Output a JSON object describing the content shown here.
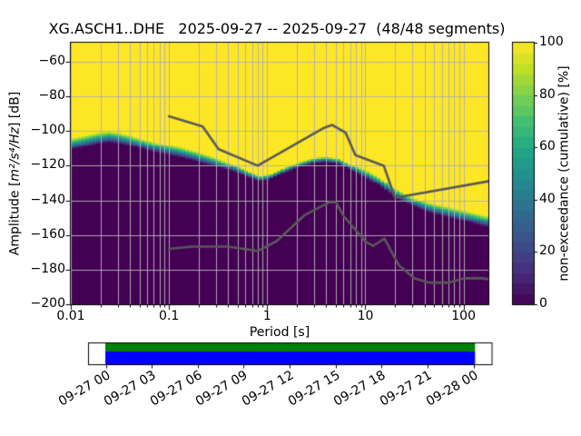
{
  "title": "XG.ASCH1..DHE   2025-09-27 -- 2025-09-27  (48/48 segments)",
  "axes": {
    "x_label": "Period [s]",
    "y_label_prefix": "Amplitude [",
    "y_label_math": "m²/s⁴/Hz",
    "y_label_suffix": "] [dB]",
    "x_tick_labels": [
      "0.01",
      "0.1",
      "1",
      "10",
      "100"
    ],
    "x_tick_values": [
      0.01,
      0.1,
      1,
      10,
      100
    ],
    "y_tick_labels": [
      "−60",
      "−80",
      "−100",
      "−120",
      "−140",
      "−160",
      "−180",
      "−200"
    ],
    "y_tick_values": [
      -60,
      -80,
      -100,
      -120,
      -140,
      -160,
      -180,
      -200
    ]
  },
  "colorbar": {
    "label": "non-exceedance (cumulative) [%]",
    "tick_labels": [
      "0",
      "20",
      "40",
      "60",
      "80",
      "100"
    ],
    "tick_values": [
      0,
      20,
      40,
      60,
      80,
      100
    ],
    "steps": 25
  },
  "timeline": {
    "tick_labels": [
      "09-27 00",
      "09-27 03",
      "09-27 06",
      "09-27 09",
      "09-27 12",
      "09-27 15",
      "09-27 18",
      "09-27 21",
      "09-28 00"
    ],
    "coverage_top_color": "#008000",
    "coverage_bottom_color": "#0000ff"
  },
  "chart_data": {
    "type": "heatmap",
    "title": "XG.ASCH1..DHE   2025-09-27 -- 2025-09-27  (48/48 segments)",
    "xlabel": "Period [s]",
    "ylabel": "Amplitude [m²/s⁴/Hz] [dB]",
    "colorbar_label": "non-exceedance (cumulative) [%]",
    "xscale": "log",
    "xlim": [
      0.01,
      179
    ],
    "ylim": [
      -200,
      -49
    ],
    "clim": [
      0,
      100
    ],
    "grid": true,
    "colormap": "viridis",
    "viridis_stops": [
      [
        0.0,
        "#440154"
      ],
      [
        0.1,
        "#482475"
      ],
      [
        0.2,
        "#414487"
      ],
      [
        0.3,
        "#355f8d"
      ],
      [
        0.4,
        "#2a788e"
      ],
      [
        0.5,
        "#21918c"
      ],
      [
        0.6,
        "#22a884"
      ],
      [
        0.7,
        "#44bf70"
      ],
      [
        0.8,
        "#7ad151"
      ],
      [
        0.9,
        "#bddf26"
      ],
      [
        1.0,
        "#fde725"
      ]
    ],
    "distribution_boundary": {
      "description": "PSD distribution: non-exceedance rises 0->100% across a narrow band; points are [period_s, center_dB, half_width_dB]",
      "points": [
        [
          0.01,
          -107.5,
          3.4
        ],
        [
          0.013,
          -106.3,
          3.4
        ],
        [
          0.016,
          -105.2,
          3.3
        ],
        [
          0.02,
          -104.0,
          3.2
        ],
        [
          0.025,
          -103.4,
          3.2
        ],
        [
          0.032,
          -104.2,
          3.1
        ],
        [
          0.042,
          -105.9,
          3.1
        ],
        [
          0.055,
          -107.6,
          3.0
        ],
        [
          0.073,
          -109.4,
          3.0
        ],
        [
          0.1,
          -110.8,
          3.0
        ],
        [
          0.135,
          -112.4,
          2.9
        ],
        [
          0.2,
          -114.9,
          2.8
        ],
        [
          0.3,
          -117.8,
          2.6
        ],
        [
          0.45,
          -121.2,
          2.2
        ],
        [
          0.65,
          -125.0,
          1.8
        ],
        [
          0.85,
          -127.3,
          1.5
        ],
        [
          1.1,
          -126.2,
          1.5
        ],
        [
          1.6,
          -122.2,
          1.5
        ],
        [
          2.2,
          -119.0,
          1.5
        ],
        [
          3.0,
          -117.0,
          1.5
        ],
        [
          4.0,
          -116.2,
          1.5
        ],
        [
          5.5,
          -117.4,
          1.6
        ],
        [
          7.5,
          -121.5,
          1.9
        ],
        [
          10.0,
          -124.5,
          2.3
        ],
        [
          14.0,
          -129.0,
          2.5
        ],
        [
          20.0,
          -135.5,
          2.5
        ],
        [
          27.0,
          -139.5,
          2.6
        ],
        [
          42.0,
          -143.8,
          2.7
        ],
        [
          64.0,
          -146.3,
          2.9
        ],
        [
          100.0,
          -148.8,
          3.1
        ],
        [
          150.0,
          -151.3,
          3.4
        ],
        [
          179.0,
          -152.3,
          3.5
        ]
      ]
    },
    "noise_models": {
      "line_color": "#595959",
      "nhnm": [
        [
          0.1,
          -91.5
        ],
        [
          0.22,
          -97.4
        ],
        [
          0.32,
          -110.5
        ],
        [
          0.8,
          -120.0
        ],
        [
          3.8,
          -98.1
        ],
        [
          4.6,
          -96.5
        ],
        [
          6.3,
          -101.0
        ],
        [
          7.9,
          -113.9
        ],
        [
          15.4,
          -120.0
        ],
        [
          20.0,
          -138.5
        ],
        [
          179.0,
          -129.0
        ]
      ],
      "nlnm": [
        [
          0.1,
          -168.0
        ],
        [
          0.17,
          -166.7
        ],
        [
          0.4,
          -166.7
        ],
        [
          0.8,
          -169.2
        ],
        [
          1.24,
          -163.7
        ],
        [
          2.4,
          -148.6
        ],
        [
          4.3,
          -141.1
        ],
        [
          5.0,
          -141.1
        ],
        [
          6.0,
          -149.0
        ],
        [
          10.0,
          -163.8
        ],
        [
          12.0,
          -166.3
        ],
        [
          15.6,
          -162.1
        ],
        [
          21.9,
          -177.4
        ],
        [
          31.6,
          -185.0
        ],
        [
          45.0,
          -187.5
        ],
        [
          70.0,
          -187.5
        ],
        [
          101.0,
          -185.0
        ],
        [
          154.0,
          -185.0
        ],
        [
          179.0,
          -185.5
        ]
      ]
    }
  }
}
